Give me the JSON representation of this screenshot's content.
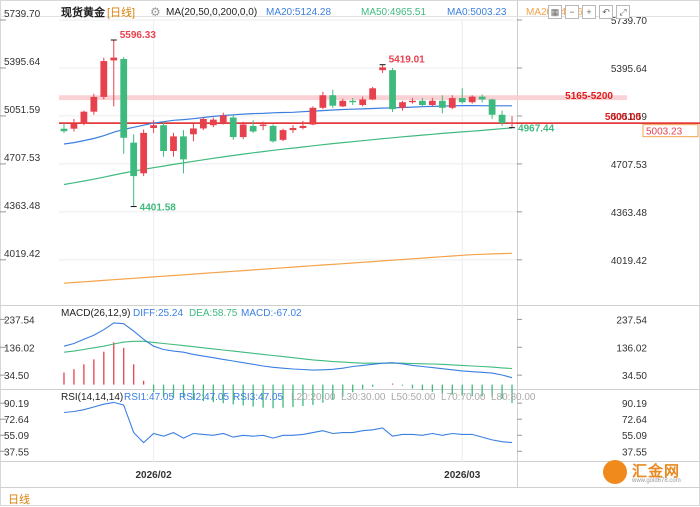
{
  "header": {
    "title": "现货黄金",
    "period": "[日线]",
    "ma_params": "MA(20,50,0,200,0,0)",
    "ma_values": [
      {
        "label": "MA20:5124.28",
        "color": "#3b7fe0"
      },
      {
        "label": "MA50:4965.51",
        "color": "#3fba7e"
      },
      {
        "label": "MA0:5003.23",
        "color": "#3b7fe0"
      },
      {
        "label": "MA200:4066",
        "color": "#f5a34a"
      }
    ],
    "macd_params": "MACD(26,12,9)",
    "macd_values": [
      {
        "label": "DIFF:25.24",
        "color": "#3b7fe0"
      },
      {
        "label": "DEA:58.75",
        "color": "#3fba7e"
      },
      {
        "label": "MACD:-67.02",
        "color": "#3b7fe0"
      }
    ],
    "rsi_params": "RSI(14,14,14)",
    "rsi_values": [
      {
        "label": "RSI1:47.05",
        "color": "#3b7fe0"
      },
      {
        "label": "RSI2:47.05",
        "color": "#3b7fe0"
      },
      {
        "label": "RSI3:47.05",
        "color": "#3b7fe0"
      },
      {
        "label": "L20:20.00",
        "color": "#aaaaaa"
      },
      {
        "label": "L30:30.00",
        "color": "#aaaaaa"
      },
      {
        "label": "L50:50.00",
        "color": "#aaaaaa"
      },
      {
        "label": "L70:70.00",
        "color": "#aaaaaa"
      },
      {
        "label": "L80:80.00",
        "color": "#aaaaaa"
      }
    ]
  },
  "toolbar": {
    "settings_icon": "gear-icon",
    "buttons": [
      "grid-icon",
      "minus-icon",
      "plus-icon",
      "back-icon",
      "fullscreen-icon"
    ]
  },
  "period_tab": "日线",
  "logo": {
    "text": "汇金网",
    "url": "www.gold678.com"
  },
  "colors": {
    "up": "#e8414e",
    "down": "#3fba7e",
    "ma20": "#3b7fe0",
    "ma50": "#3fba7e",
    "ma200": "#f5a34a",
    "line5000": "#e11b1b",
    "band": "#f9c9cc"
  },
  "chart_data": [
    {
      "type": "candlestick",
      "title": "现货黄金 日线",
      "y_ticks": [
        "5739.70",
        "5395.64",
        "5051.59",
        "4707.53",
        "4363.48",
        "4019.42"
      ],
      "ylim": [
        3709.77,
        5739.7
      ],
      "x_ticks": [
        {
          "label": "2026/02",
          "index": 9
        },
        {
          "label": "2026/03",
          "index": 40
        }
      ],
      "candles": [
        {
          "o": 4960,
          "h": 4999,
          "l": 4930,
          "c": 4942
        },
        {
          "o": 4960,
          "h": 5030,
          "l": 4940,
          "c": 4998
        },
        {
          "o": 4998,
          "h": 5090,
          "l": 4985,
          "c": 5082
        },
        {
          "o": 5082,
          "h": 5210,
          "l": 5060,
          "c": 5188
        },
        {
          "o": 5188,
          "h": 5470,
          "l": 5170,
          "c": 5445
        },
        {
          "o": 5450,
          "h": 5596.33,
          "l": 5120,
          "c": 5470
        },
        {
          "o": 5460,
          "h": 5475,
          "l": 4780,
          "c": 4895
        },
        {
          "o": 4860,
          "h": 4920,
          "l": 4401.58,
          "c": 4620
        },
        {
          "o": 4640,
          "h": 4955,
          "l": 4620,
          "c": 4930
        },
        {
          "o": 4965,
          "h": 5020,
          "l": 4930,
          "c": 4985
        },
        {
          "o": 4985,
          "h": 5010,
          "l": 4760,
          "c": 4800
        },
        {
          "o": 4800,
          "h": 4930,
          "l": 4760,
          "c": 4905
        },
        {
          "o": 4905,
          "h": 4950,
          "l": 4640,
          "c": 4740
        },
        {
          "o": 4920,
          "h": 5000,
          "l": 4870,
          "c": 4962
        },
        {
          "o": 4962,
          "h": 5040,
          "l": 4950,
          "c": 5030
        },
        {
          "o": 4985,
          "h": 5040,
          "l": 4970,
          "c": 5025
        },
        {
          "o": 5000,
          "h": 5075,
          "l": 4990,
          "c": 5055
        },
        {
          "o": 5040,
          "h": 5060,
          "l": 4880,
          "c": 4900
        },
        {
          "o": 4900,
          "h": 5010,
          "l": 4885,
          "c": 4990
        },
        {
          "o": 4980,
          "h": 5020,
          "l": 4930,
          "c": 4940
        },
        {
          "o": 4980,
          "h": 5010,
          "l": 4950,
          "c": 4990
        },
        {
          "o": 4980,
          "h": 4990,
          "l": 4860,
          "c": 4870
        },
        {
          "o": 4880,
          "h": 4960,
          "l": 4870,
          "c": 4950
        },
        {
          "o": 4950,
          "h": 4985,
          "l": 4930,
          "c": 4965
        },
        {
          "o": 4965,
          "h": 5015,
          "l": 4955,
          "c": 4980
        },
        {
          "o": 4990,
          "h": 5120,
          "l": 4985,
          "c": 5110
        },
        {
          "o": 5110,
          "h": 5225,
          "l": 5100,
          "c": 5200
        },
        {
          "o": 5200,
          "h": 5240,
          "l": 5110,
          "c": 5125
        },
        {
          "o": 5120,
          "h": 5175,
          "l": 5115,
          "c": 5160
        },
        {
          "o": 5160,
          "h": 5180,
          "l": 5130,
          "c": 5150
        },
        {
          "o": 5130,
          "h": 5190,
          "l": 5120,
          "c": 5170
        },
        {
          "o": 5170,
          "h": 5260,
          "l": 5165,
          "c": 5250
        },
        {
          "o": 5380,
          "h": 5419.01,
          "l": 5360,
          "c": 5400
        },
        {
          "o": 5380,
          "h": 5395,
          "l": 5080,
          "c": 5100
        },
        {
          "o": 5110,
          "h": 5160,
          "l": 5090,
          "c": 5150
        },
        {
          "o": 5150,
          "h": 5180,
          "l": 5140,
          "c": 5160
        },
        {
          "o": 5160,
          "h": 5180,
          "l": 5120,
          "c": 5130
        },
        {
          "o": 5130,
          "h": 5180,
          "l": 5120,
          "c": 5160
        },
        {
          "o": 5160,
          "h": 5200,
          "l": 5070,
          "c": 5110
        },
        {
          "o": 5110,
          "h": 5200,
          "l": 5100,
          "c": 5180
        },
        {
          "o": 5180,
          "h": 5250,
          "l": 5140,
          "c": 5150
        },
        {
          "o": 5150,
          "h": 5200,
          "l": 5140,
          "c": 5190
        },
        {
          "o": 5190,
          "h": 5205,
          "l": 5150,
          "c": 5170
        },
        {
          "o": 5170,
          "h": 5175,
          "l": 5030,
          "c": 5060
        },
        {
          "o": 5060,
          "h": 5090,
          "l": 4980,
          "c": 5000
        },
        {
          "o": 5000,
          "h": 5050,
          "l": 4967.44,
          "c": 5003.23
        }
      ],
      "ma20": [
        4850,
        4860,
        4875,
        4890,
        4910,
        4935,
        4955,
        4970,
        4985,
        5000,
        5010,
        5020,
        5025,
        5032,
        5040,
        5048,
        5055,
        5060,
        5065,
        5068,
        5070,
        5074,
        5076,
        5078,
        5082,
        5086,
        5090,
        5094,
        5098,
        5100,
        5102,
        5105,
        5108,
        5110,
        5112,
        5115,
        5118,
        5120,
        5122,
        5124,
        5126,
        5126,
        5125,
        5124,
        5124,
        5124.28
      ],
      "ma50": [
        4560,
        4572,
        4585,
        4598,
        4612,
        4628,
        4642,
        4655,
        4668,
        4680,
        4692,
        4704,
        4715,
        4726,
        4737,
        4748,
        4758,
        4768,
        4778,
        4787,
        4796,
        4805,
        4813,
        4821,
        4829,
        4837,
        4845,
        4853,
        4860,
        4867,
        4874,
        4881,
        4888,
        4895,
        4902,
        4908,
        4914,
        4920,
        4926,
        4932,
        4937,
        4942,
        4948,
        4954,
        4960,
        4965.51
      ],
      "ma200": [
        3852,
        3857,
        3862,
        3867,
        3872,
        3877,
        3882,
        3887,
        3892,
        3897,
        3902,
        3907,
        3912,
        3917,
        3922,
        3927,
        3932,
        3937,
        3942,
        3947,
        3952,
        3957,
        3962,
        3967,
        3972,
        3977,
        3982,
        3987,
        3992,
        3997,
        4002,
        4007,
        4012,
        4017,
        4022,
        4027,
        4032,
        4037,
        4042,
        4047,
        4052,
        4056,
        4059,
        4062,
        4064,
        4066
      ],
      "band": {
        "low": 5165,
        "high": 5200,
        "label": "5165-5200"
      },
      "level_line": {
        "value": 5000,
        "label": "5000.00"
      },
      "last_price_label": "5003.23",
      "annotations": [
        {
          "index": 5,
          "value": 5596.33,
          "label": "5596.33",
          "side": "high",
          "color": "#e8414e"
        },
        {
          "index": 7,
          "value": 4401.58,
          "label": "4401.58",
          "side": "low",
          "color": "#3fba7e"
        },
        {
          "index": 32,
          "value": 5419.01,
          "label": "5419.01",
          "side": "high",
          "color": "#e8414e"
        },
        {
          "index": 45,
          "value": 4967.44,
          "label": "4967.44",
          "side": "low",
          "color": "#3fba7e"
        }
      ]
    },
    {
      "type": "line",
      "title": "MACD(26,12,9)",
      "y_ticks": [
        "237.54",
        "136.02",
        "34.50"
      ],
      "ylim": [
        -5,
        250
      ],
      "series": [
        {
          "name": "DIFF",
          "color": "#3b7fe0",
          "values": [
            140,
            150,
            165,
            180,
            200,
            225,
            222,
            195,
            165,
            140,
            128,
            122,
            118,
            110,
            104,
            98,
            92,
            86,
            80,
            74,
            68,
            63,
            60,
            57,
            55,
            53,
            54,
            56,
            60,
            66,
            70,
            74,
            78,
            80,
            76,
            70,
            66,
            62,
            58,
            54,
            50,
            47,
            45,
            42,
            35,
            25.24
          ]
        },
        {
          "name": "DEA",
          "color": "#3fba7e",
          "values": [
            118,
            122,
            128,
            134,
            140,
            148,
            155,
            158,
            158,
            154,
            150,
            146,
            142,
            138,
            134,
            130,
            126,
            122,
            118,
            114,
            110,
            106,
            102,
            98,
            94,
            90,
            87,
            84,
            82,
            80,
            78,
            78,
            78,
            78,
            78,
            77,
            76,
            75,
            74,
            72,
            70,
            68,
            66,
            64,
            61,
            58.75
          ]
        }
      ],
      "bars": [
        44,
        56,
        74,
        92,
        120,
        154,
        134,
        74,
        14,
        -28,
        -44,
        -48,
        -48,
        -56,
        -60,
        -64,
        -68,
        -72,
        -76,
        -80,
        -84,
        -86,
        -84,
        -82,
        -78,
        -74,
        -66,
        -56,
        -44,
        -28,
        -16,
        -8,
        0,
        4,
        -4,
        -14,
        -20,
        -26,
        -32,
        -36,
        -40,
        -42,
        -42,
        -44,
        -52,
        -67.02
      ]
    },
    {
      "type": "line",
      "title": "RSI(14,14,14)",
      "y_ticks": [
        "90.19",
        "72.64",
        "55.09",
        "37.55"
      ],
      "ylim": [
        28,
        98
      ],
      "series": [
        {
          "name": "RSI1",
          "color": "#3b7fe0",
          "values": [
            80,
            81,
            83,
            86,
            89,
            91,
            88,
            58,
            47,
            57,
            54,
            58,
            52,
            57,
            56,
            55,
            57,
            53,
            55,
            54,
            55,
            52,
            55,
            55,
            56,
            58,
            60,
            57,
            58,
            58,
            60,
            61,
            63,
            54,
            56,
            56,
            55,
            57,
            55,
            57,
            56,
            56,
            53,
            50,
            48,
            47.05
          ]
        }
      ]
    }
  ]
}
